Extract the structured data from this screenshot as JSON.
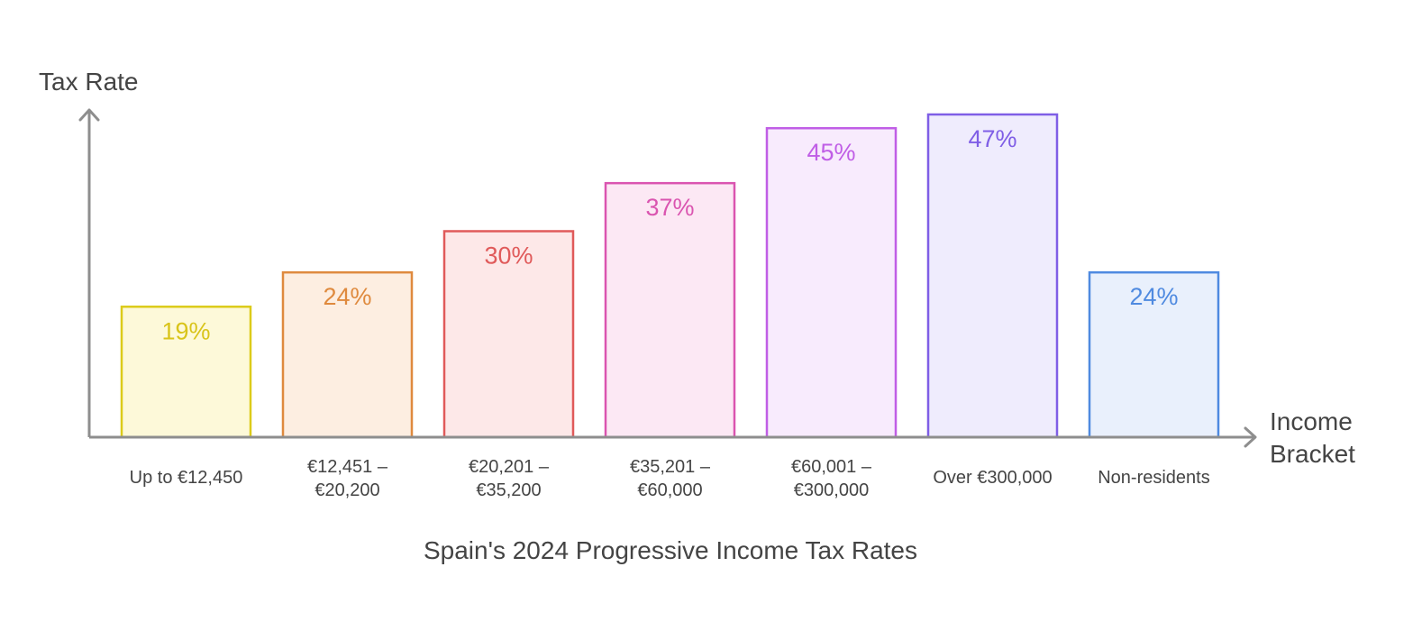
{
  "chart_data": {
    "type": "bar",
    "title": "Spain's 2024 Progressive Income Tax Rates",
    "xlabel": "Income\nBracket",
    "ylabel": "Tax Rate",
    "categories": [
      "Up to €12,450",
      "€12,451 –\n€20,200",
      "€20,201 –\n€35,200",
      "€35,201 –\n€60,000",
      "€60,001 –\n€300,000",
      "Over €300,000",
      "Non-residents"
    ],
    "values": [
      19,
      24,
      30,
      37,
      45,
      47,
      24
    ],
    "value_labels": [
      "19%",
      "24%",
      "30%",
      "37%",
      "45%",
      "47%",
      "24%"
    ],
    "unit": "%",
    "ylim": [
      0,
      47
    ],
    "grid": false,
    "legend": "none",
    "colors": [
      {
        "stroke": "#dccb1a",
        "fill": "#fdf9d9",
        "text": "#d9c41a"
      },
      {
        "stroke": "#df8a3e",
        "fill": "#fdeee1",
        "text": "#df8a3e"
      },
      {
        "stroke": "#e05a5a",
        "fill": "#fde8e8",
        "text": "#e05a5a"
      },
      {
        "stroke": "#da55b0",
        "fill": "#fce8f4",
        "text": "#da55b0"
      },
      {
        "stroke": "#c05ee6",
        "fill": "#f8ebfd",
        "text": "#c05ee6"
      },
      {
        "stroke": "#7f5ee6",
        "fill": "#efecfd",
        "text": "#7f5ee6"
      },
      {
        "stroke": "#4f8ae0",
        "fill": "#e9f0fc",
        "text": "#4f8ae0"
      }
    ],
    "axis_color": "#8e8e8e",
    "label_color": "#444444"
  }
}
